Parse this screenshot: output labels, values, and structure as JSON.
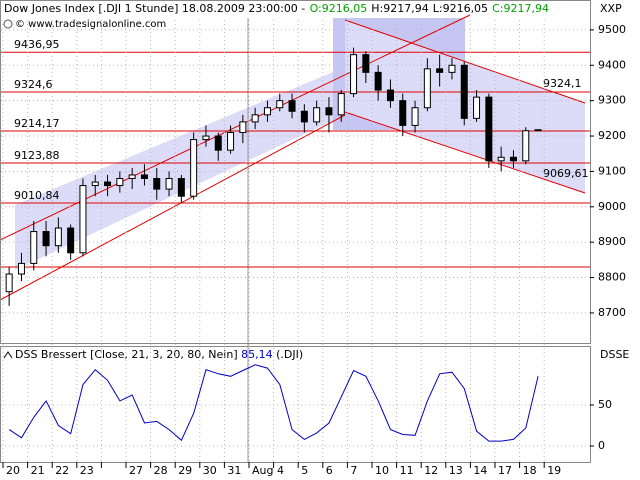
{
  "header": {
    "title": "Dow Jones Index [.DJI  1 Stunde] 18.08.2009 23:00:00 -",
    "ohlc": [
      "O:9216,05",
      "H:9217,94",
      "L:9216,05",
      "C:9217,94"
    ],
    "ohlc_colors": [
      "#00a000",
      "#000000",
      "#000000",
      "#00a000"
    ],
    "copyright": "© www.tradesignalonline.com"
  },
  "chart_data": [
    {
      "type": "candlestick",
      "axis_name": "XXP",
      "ylim": [
        8615,
        9528
      ],
      "yticks": [
        8700,
        8800,
        8900,
        9000,
        9100,
        9200,
        9300,
        9400,
        9500
      ],
      "grid": true,
      "up_color": "#ffffff",
      "down_color": "#000000",
      "wick_color": "#000000",
      "day_labels": [
        "20",
        "21",
        "22",
        "23",
        null,
        "27",
        "28",
        "29",
        "30",
        "31",
        "Aug 4",
        null,
        "5",
        "6",
        "7",
        "10",
        "11",
        "12",
        "13",
        "14",
        "17",
        "18",
        "19"
      ],
      "open": [
        8760,
        8810,
        8840,
        8930,
        8890,
        8940,
        8870,
        9060,
        9070,
        9060,
        9080,
        9090,
        9080,
        9050,
        9080,
        9030,
        9190,
        9200,
        9160,
        9210,
        9240,
        9260,
        9280,
        9300,
        9270,
        9240,
        9280,
        9260,
        9320,
        9430,
        9380,
        9330,
        9300,
        9230,
        9280,
        9390,
        9380,
        9400,
        9250,
        9310,
        9130,
        9140,
        9130,
        9216.05
      ],
      "high": [
        8830,
        8870,
        8960,
        8960,
        8970,
        8950,
        9080,
        9090,
        9090,
        9100,
        9110,
        9120,
        9110,
        9100,
        9090,
        9210,
        9230,
        9210,
        9230,
        9260,
        9280,
        9300,
        9320,
        9320,
        9290,
        9300,
        9310,
        9330,
        9450,
        9440,
        9400,
        9360,
        9320,
        9300,
        9420,
        9430,
        9420,
        9410,
        9330,
        9320,
        9170,
        9160,
        9225,
        9217.94
      ],
      "low": [
        8720,
        8790,
        8820,
        8860,
        8870,
        8850,
        8860,
        9030,
        9030,
        9040,
        9050,
        9060,
        9020,
        9030,
        9010,
        9020,
        9170,
        9130,
        9150,
        9180,
        9220,
        9240,
        9270,
        9250,
        9210,
        9230,
        9210,
        9240,
        9310,
        9350,
        9300,
        9280,
        9200,
        9210,
        9270,
        9340,
        9360,
        9230,
        9240,
        9110,
        9100,
        9110,
        9120,
        9216.05
      ],
      "close": [
        8810,
        8840,
        8930,
        8890,
        8940,
        8870,
        9060,
        9070,
        9060,
        9080,
        9090,
        9080,
        9050,
        9080,
        9030,
        9190,
        9200,
        9160,
        9210,
        9240,
        9260,
        9280,
        9300,
        9270,
        9240,
        9280,
        9260,
        9320,
        9430,
        9380,
        9330,
        9300,
        9230,
        9280,
        9390,
        9380,
        9400,
        9250,
        9310,
        9130,
        9140,
        9130,
        9215,
        9217.94
      ],
      "levels": [
        {
          "value": 9436.95,
          "label": "9436,95"
        },
        {
          "value": 9324.6,
          "label": "9324,6"
        },
        {
          "value": 9214.17,
          "label": "9214,17"
        },
        {
          "value": 9123.88,
          "label": "9123,88"
        },
        {
          "value": 9010.84,
          "label": "9010,84"
        },
        8830
      ],
      "level_color": "#e00000",
      "annotations": [
        "9324,1",
        "9069,61"
      ]
    },
    {
      "type": "line",
      "title": "DSS Bressert [Close, 21, 3, 20, 80, Nein]",
      "last_label": "85,14",
      "symbol": "(.DJI)",
      "axis_name": "DSSE",
      "color": "#0000c8",
      "ylim": [
        -19.5,
        120.7
      ],
      "yticks": [
        0,
        50
      ],
      "grid": true,
      "values": [
        20,
        10,
        35,
        55,
        25,
        15,
        75,
        93,
        80,
        55,
        62,
        28,
        30,
        20,
        7,
        40,
        93,
        88,
        85,
        92,
        99,
        95,
        75,
        20,
        8,
        16,
        28,
        60,
        92,
        85,
        55,
        20,
        14,
        13,
        55,
        88,
        90,
        70,
        18,
        6,
        6,
        8,
        22,
        85.14
      ]
    }
  ]
}
